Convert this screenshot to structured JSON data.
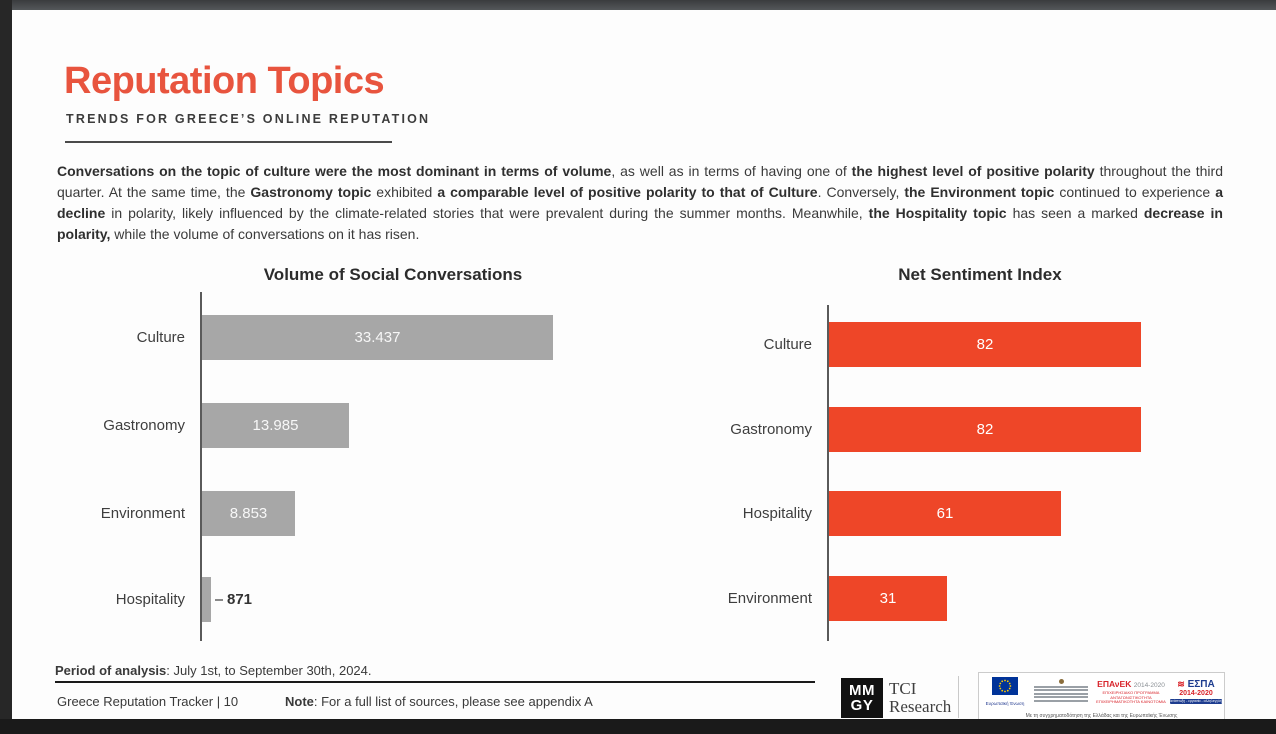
{
  "slide": {
    "title": "Reputation Topics",
    "subtitle": "TRENDS FOR GREECE’S ONLINE REPUTATION",
    "paragraph_runs": [
      {
        "b": 1,
        "t": "Conversations on the topic of culture were the most dominant in terms of volume"
      },
      {
        "b": 0,
        "t": ", as well as in terms of having one of "
      },
      {
        "b": 1,
        "t": "the highest level of positive polarity"
      },
      {
        "b": 0,
        "t": " throughout the third quarter. At the same time, the "
      },
      {
        "b": 1,
        "t": "Gastronomy topic"
      },
      {
        "b": 0,
        "t": " exhibited "
      },
      {
        "b": 1,
        "t": "a comparable level of positive polarity to that of Culture"
      },
      {
        "b": 0,
        "t": ". Conversely, "
      },
      {
        "b": 1,
        "t": "the Environment topic"
      },
      {
        "b": 0,
        "t": " continued to experience "
      },
      {
        "b": 1,
        "t": "a decline"
      },
      {
        "b": 0,
        "t": " in polarity, likely influenced by the climate-related stories that were prevalent during the summer months. Meanwhile, "
      },
      {
        "b": 1,
        "t": "the Hospitality topic"
      },
      {
        "b": 0,
        "t": " has seen a marked "
      },
      {
        "b": 1,
        "t": "decrease in polarity,"
      },
      {
        "b": 0,
        "t": " while the volume of conversations on it has risen."
      }
    ]
  },
  "chart_data": [
    {
      "type": "bar",
      "orientation": "horizontal",
      "title": "Volume of Social Conversations",
      "categories": [
        "Culture",
        "Gastronomy",
        "Environment",
        "Hospitality"
      ],
      "values": [
        33437,
        13985,
        8853,
        871
      ],
      "value_labels": [
        "33.437",
        "13.985",
        "8.853",
        "871"
      ],
      "bar_color": "#A7A7A7",
      "value_label_color_inside": "#f7f7f7",
      "xlim": [
        0,
        36500
      ],
      "grid": false,
      "legend": false,
      "value_label_position": "inside-center"
    },
    {
      "type": "bar",
      "orientation": "horizontal",
      "title": "Net Sentiment Index",
      "categories": [
        "Culture",
        "Gastronomy",
        "Hospitality",
        "Environment"
      ],
      "values": [
        82,
        82,
        61,
        31
      ],
      "value_labels": [
        "82",
        "82",
        "61",
        "31"
      ],
      "bar_color": "#EE4628",
      "value_label_color_inside": "#ffffff",
      "xlim": [
        0,
        86
      ],
      "grid": false,
      "legend": false,
      "value_label_position": "inside-center"
    }
  ],
  "footer": {
    "period_label": "Period of analysis",
    "period_text": ": July 1st, to September 30th, 2024.",
    "tracker_text": "Greece Reputation Tracker |  10",
    "note_label": "Note",
    "note_text": ": For a full list of sources, please see appendix A"
  },
  "logos": {
    "mmgy_line1": "MM",
    "mmgy_line2": "GY",
    "tci_line1": "TCI",
    "tci_line2": "Research",
    "eu": {
      "flag_caption": "Ευρωπαϊκή Ένωση",
      "epanek_title": "ΕΠΑνΕΚ",
      "epanek_years": "2014-2020",
      "epanek_sub": "ΕΠΙΧΕΙΡΗΣΙΑΚΟ ΠΡΟΓΡΑΜΜΑ ΑΝΤΑΓΩΝΙΣΤΙΚΟΤΗΤΑ ΕΠΙΧΕΙΡΗΜΑΤΙΚΟΤΗΤΑ ΚΑΙΝΟΤΟΜΙΑ",
      "espa_title": "ΕΣΠΑ",
      "espa_years": "2014-2020",
      "espa_bar": "ανάπτυξη - εργασία - αλληλεγγύη",
      "cofund": "Με τη συγχρηματοδότηση της Ελλάδας και της Ευρωπαϊκής Ένωσης"
    }
  },
  "colors": {
    "accent_title": "#E8543E",
    "bar_gray": "#A7A7A7",
    "bar_orange": "#EE4628",
    "text": "#3A3A3A"
  }
}
